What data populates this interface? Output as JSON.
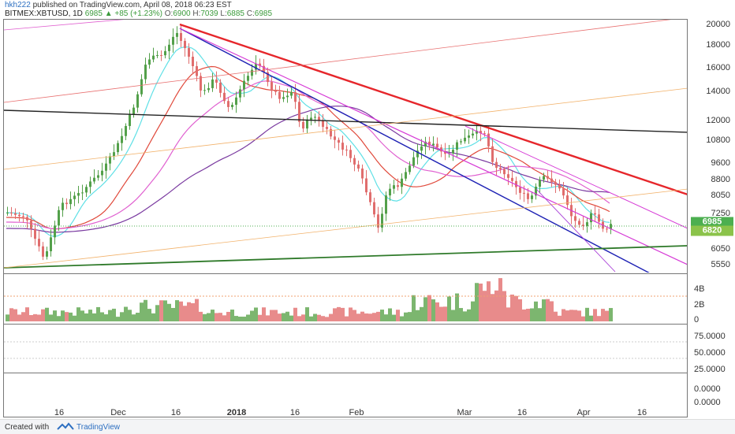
{
  "header": {
    "user": "hkh222",
    "published": " published on TradingView.com, April 08, 2018 06:23 EST"
  },
  "symbol": {
    "name": "BITMEX:XBTUSD, 1D",
    "last": "6985",
    "change": "▲ +85 (+1.23%)",
    "o_label": "O:",
    "o": "6900",
    "h_label": "H:",
    "h": "7039",
    "l_label": "L:",
    "l": "6885",
    "c_label": "C:",
    "c": "6985"
  },
  "price_axis": {
    "ticks": [
      "20000",
      "18000",
      "16000",
      "14000",
      "12000",
      "10800",
      "9600",
      "8800",
      "8050",
      "7250",
      "6050",
      "5550"
    ],
    "last_price_tag": "6985",
    "level_tag": "6820",
    "last_price_color": "#4caf50",
    "level_color": "#8bc34a"
  },
  "volume_axis": {
    "ticks": [
      "4B",
      "2B",
      "0"
    ]
  },
  "indicator_axis": {
    "ticks": [
      "75.0000",
      "50.0000",
      "25.0000",
      "0.0000"
    ]
  },
  "bottom_axis": {
    "ticks": [
      "0.0000"
    ]
  },
  "time_axis": {
    "labels": [
      "16",
      "Dec",
      "16",
      "2018",
      "16",
      "Feb",
      "Mar",
      "16",
      "Apr",
      "16"
    ]
  },
  "footer": {
    "created_with": "Created with",
    "brand": "TradingView"
  },
  "colors": {
    "up": "#53a04a",
    "down": "#e06d6d",
    "trend_red": "#e6262b",
    "trend_blue": "#1e22b4",
    "trend_magenta": "#d63ad6",
    "support_green": "#2f7a2a",
    "resistance_black": "#222222"
  }
}
